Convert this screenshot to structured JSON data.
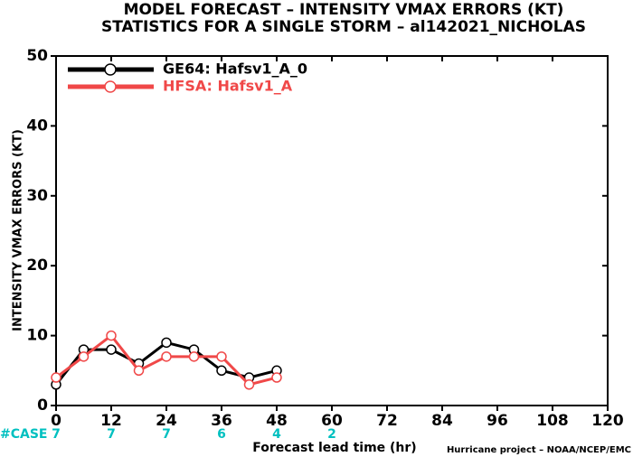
{
  "chart_data": {
    "type": "line",
    "title": "MODEL FORECAST – INTENSITY VMAX ERRORS (KT)",
    "subtitle": "STATISTICS FOR A SINGLE STORM – al142021_NICHOLAS",
    "y_label": "INTENSITY VMAX ERRORS (KT)",
    "x_label": "Forecast lead time (hr)",
    "credit": "Hurricane project – NOAA/NCEP/EMC",
    "x": [
      0,
      6,
      12,
      18,
      24,
      30,
      36,
      42,
      48
    ],
    "series": [
      {
        "name": "GE64: Hafsv1_A_0",
        "color": "#000000",
        "values": [
          3,
          8,
          8,
          6,
          9,
          8,
          5,
          4,
          5
        ]
      },
      {
        "name": "HFSA: Hafsv1_A",
        "color": "#f04848",
        "values": [
          4,
          7,
          10,
          5,
          7,
          7,
          7,
          3,
          4
        ]
      }
    ],
    "cases": {
      "label": "#CASE",
      "color": "#00c0c0",
      "x": [
        0,
        12,
        24,
        36,
        48,
        60
      ],
      "values": [
        7,
        7,
        7,
        6,
        4,
        2
      ]
    },
    "xlim": [
      0,
      120
    ],
    "xticks": [
      0,
      12,
      24,
      36,
      48,
      60,
      72,
      84,
      96,
      108,
      120
    ],
    "ylim": [
      0,
      50
    ],
    "yticks": [
      0,
      10,
      20,
      30,
      40,
      50
    ],
    "legend": "upper-left"
  }
}
